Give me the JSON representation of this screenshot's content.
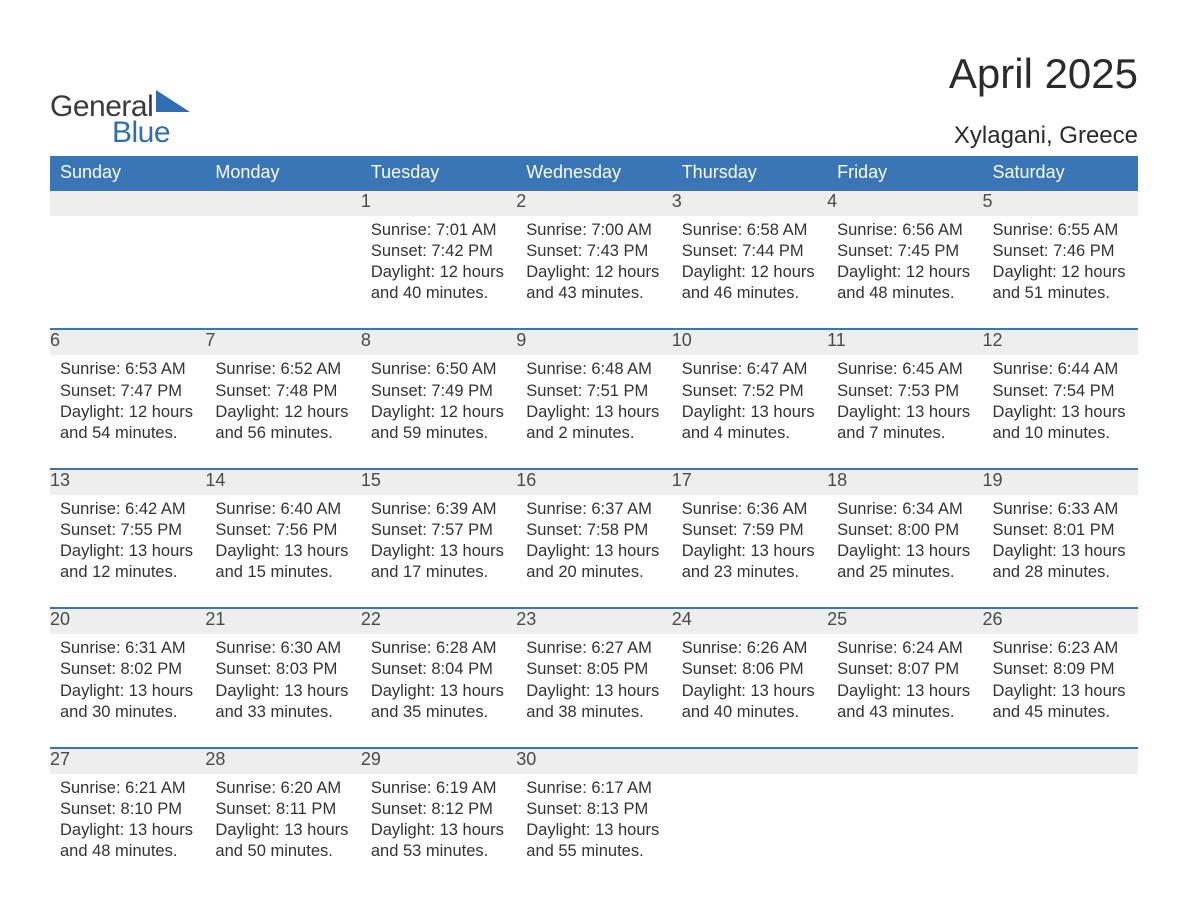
{
  "logo": {
    "word1": "General",
    "word2": "Blue"
  },
  "title": "April 2025",
  "subtitle": "Xylagani, Greece",
  "colors": {
    "brand_blue": "#3a76b6",
    "header_text": "#ffffff",
    "daynum_bg": "#eeeeee",
    "text": "#333333",
    "page_bg": "#ffffff"
  },
  "daynames": [
    "Sunday",
    "Monday",
    "Tuesday",
    "Wednesday",
    "Thursday",
    "Friday",
    "Saturday"
  ],
  "weeks": [
    [
      null,
      null,
      {
        "n": "1",
        "sunrise": "Sunrise: 7:01 AM",
        "sunset": "Sunset: 7:42 PM",
        "d1": "Daylight: 12 hours",
        "d2": "and 40 minutes."
      },
      {
        "n": "2",
        "sunrise": "Sunrise: 7:00 AM",
        "sunset": "Sunset: 7:43 PM",
        "d1": "Daylight: 12 hours",
        "d2": "and 43 minutes."
      },
      {
        "n": "3",
        "sunrise": "Sunrise: 6:58 AM",
        "sunset": "Sunset: 7:44 PM",
        "d1": "Daylight: 12 hours",
        "d2": "and 46 minutes."
      },
      {
        "n": "4",
        "sunrise": "Sunrise: 6:56 AM",
        "sunset": "Sunset: 7:45 PM",
        "d1": "Daylight: 12 hours",
        "d2": "and 48 minutes."
      },
      {
        "n": "5",
        "sunrise": "Sunrise: 6:55 AM",
        "sunset": "Sunset: 7:46 PM",
        "d1": "Daylight: 12 hours",
        "d2": "and 51 minutes."
      }
    ],
    [
      {
        "n": "6",
        "sunrise": "Sunrise: 6:53 AM",
        "sunset": "Sunset: 7:47 PM",
        "d1": "Daylight: 12 hours",
        "d2": "and 54 minutes."
      },
      {
        "n": "7",
        "sunrise": "Sunrise: 6:52 AM",
        "sunset": "Sunset: 7:48 PM",
        "d1": "Daylight: 12 hours",
        "d2": "and 56 minutes."
      },
      {
        "n": "8",
        "sunrise": "Sunrise: 6:50 AM",
        "sunset": "Sunset: 7:49 PM",
        "d1": "Daylight: 12 hours",
        "d2": "and 59 minutes."
      },
      {
        "n": "9",
        "sunrise": "Sunrise: 6:48 AM",
        "sunset": "Sunset: 7:51 PM",
        "d1": "Daylight: 13 hours",
        "d2": "and 2 minutes."
      },
      {
        "n": "10",
        "sunrise": "Sunrise: 6:47 AM",
        "sunset": "Sunset: 7:52 PM",
        "d1": "Daylight: 13 hours",
        "d2": "and 4 minutes."
      },
      {
        "n": "11",
        "sunrise": "Sunrise: 6:45 AM",
        "sunset": "Sunset: 7:53 PM",
        "d1": "Daylight: 13 hours",
        "d2": "and 7 minutes."
      },
      {
        "n": "12",
        "sunrise": "Sunrise: 6:44 AM",
        "sunset": "Sunset: 7:54 PM",
        "d1": "Daylight: 13 hours",
        "d2": "and 10 minutes."
      }
    ],
    [
      {
        "n": "13",
        "sunrise": "Sunrise: 6:42 AM",
        "sunset": "Sunset: 7:55 PM",
        "d1": "Daylight: 13 hours",
        "d2": "and 12 minutes."
      },
      {
        "n": "14",
        "sunrise": "Sunrise: 6:40 AM",
        "sunset": "Sunset: 7:56 PM",
        "d1": "Daylight: 13 hours",
        "d2": "and 15 minutes."
      },
      {
        "n": "15",
        "sunrise": "Sunrise: 6:39 AM",
        "sunset": "Sunset: 7:57 PM",
        "d1": "Daylight: 13 hours",
        "d2": "and 17 minutes."
      },
      {
        "n": "16",
        "sunrise": "Sunrise: 6:37 AM",
        "sunset": "Sunset: 7:58 PM",
        "d1": "Daylight: 13 hours",
        "d2": "and 20 minutes."
      },
      {
        "n": "17",
        "sunrise": "Sunrise: 6:36 AM",
        "sunset": "Sunset: 7:59 PM",
        "d1": "Daylight: 13 hours",
        "d2": "and 23 minutes."
      },
      {
        "n": "18",
        "sunrise": "Sunrise: 6:34 AM",
        "sunset": "Sunset: 8:00 PM",
        "d1": "Daylight: 13 hours",
        "d2": "and 25 minutes."
      },
      {
        "n": "19",
        "sunrise": "Sunrise: 6:33 AM",
        "sunset": "Sunset: 8:01 PM",
        "d1": "Daylight: 13 hours",
        "d2": "and 28 minutes."
      }
    ],
    [
      {
        "n": "20",
        "sunrise": "Sunrise: 6:31 AM",
        "sunset": "Sunset: 8:02 PM",
        "d1": "Daylight: 13 hours",
        "d2": "and 30 minutes."
      },
      {
        "n": "21",
        "sunrise": "Sunrise: 6:30 AM",
        "sunset": "Sunset: 8:03 PM",
        "d1": "Daylight: 13 hours",
        "d2": "and 33 minutes."
      },
      {
        "n": "22",
        "sunrise": "Sunrise: 6:28 AM",
        "sunset": "Sunset: 8:04 PM",
        "d1": "Daylight: 13 hours",
        "d2": "and 35 minutes."
      },
      {
        "n": "23",
        "sunrise": "Sunrise: 6:27 AM",
        "sunset": "Sunset: 8:05 PM",
        "d1": "Daylight: 13 hours",
        "d2": "and 38 minutes."
      },
      {
        "n": "24",
        "sunrise": "Sunrise: 6:26 AM",
        "sunset": "Sunset: 8:06 PM",
        "d1": "Daylight: 13 hours",
        "d2": "and 40 minutes."
      },
      {
        "n": "25",
        "sunrise": "Sunrise: 6:24 AM",
        "sunset": "Sunset: 8:07 PM",
        "d1": "Daylight: 13 hours",
        "d2": "and 43 minutes."
      },
      {
        "n": "26",
        "sunrise": "Sunrise: 6:23 AM",
        "sunset": "Sunset: 8:09 PM",
        "d1": "Daylight: 13 hours",
        "d2": "and 45 minutes."
      }
    ],
    [
      {
        "n": "27",
        "sunrise": "Sunrise: 6:21 AM",
        "sunset": "Sunset: 8:10 PM",
        "d1": "Daylight: 13 hours",
        "d2": "and 48 minutes."
      },
      {
        "n": "28",
        "sunrise": "Sunrise: 6:20 AM",
        "sunset": "Sunset: 8:11 PM",
        "d1": "Daylight: 13 hours",
        "d2": "and 50 minutes."
      },
      {
        "n": "29",
        "sunrise": "Sunrise: 6:19 AM",
        "sunset": "Sunset: 8:12 PM",
        "d1": "Daylight: 13 hours",
        "d2": "and 53 minutes."
      },
      {
        "n": "30",
        "sunrise": "Sunrise: 6:17 AM",
        "sunset": "Sunset: 8:13 PM",
        "d1": "Daylight: 13 hours",
        "d2": "and 55 minutes."
      },
      null,
      null,
      null
    ]
  ]
}
